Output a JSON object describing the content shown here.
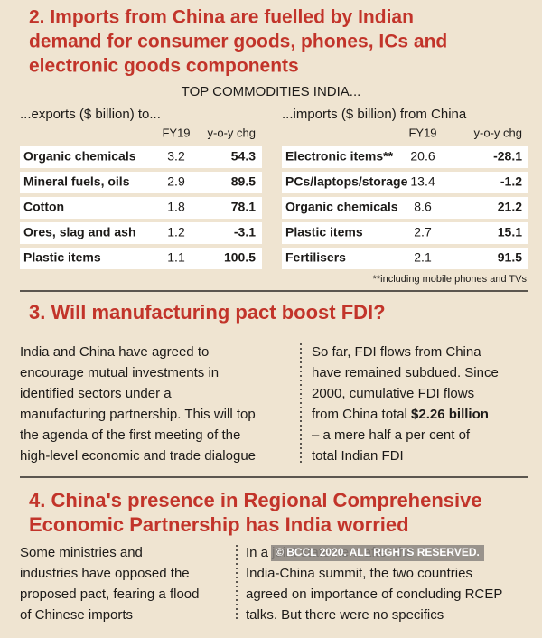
{
  "section2": {
    "heading_lines": [
      "2. Imports from China are fuelled by Indian",
      "demand for consumer goods, phones, ICs and",
      "electronic goods components"
    ],
    "subtitle": "TOP COMMODITIES INDIA...",
    "exports": {
      "caption": "...exports ($ billion) to...",
      "columns": [
        "FY19",
        "y-o-y chg"
      ],
      "rows": [
        [
          "Organic chemicals",
          3.2,
          54.3
        ],
        [
          "Mineral fuels, oils",
          2.9,
          89.5
        ],
        [
          "Cotton",
          1.8,
          78.1
        ],
        [
          "Ores, slag and ash",
          1.2,
          -3.1
        ],
        [
          "Plastic items",
          1.1,
          100.5
        ]
      ]
    },
    "imports": {
      "caption": "...imports ($ billion) from China",
      "columns": [
        "FY19",
        "y-o-y chg"
      ],
      "rows": [
        [
          "Electronic items**",
          20.6,
          -28.1
        ],
        [
          "PCs/laptops/storage",
          13.4,
          -1.2
        ],
        [
          "Organic chemicals",
          8.6,
          21.2
        ],
        [
          "Plastic items",
          2.7,
          15.1
        ],
        [
          "Fertilisers",
          2.1,
          91.5
        ]
      ]
    },
    "footnote": "**including mobile phones and TVs"
  },
  "section3": {
    "heading": "3. Will manufacturing pact boost FDI?",
    "left": [
      "India and China have agreed to",
      "encourage mutual investments in",
      "identified sectors under a",
      "manufacturing partnership. This will top",
      "the agenda of the first meeting of the",
      "high-level economic and trade dialogue"
    ],
    "right": [
      "So far, FDI flows from China",
      "have remained subdued. Since",
      "2000, cumulative FDI flows",
      {
        "text": "from China total ",
        "bold": "$2.26 billion"
      },
      "– a mere half a per cent of",
      "total Indian FDI"
    ]
  },
  "section4": {
    "heading_lines": [
      "4. China's presence in Regional Comprehensive",
      "Economic Partnership has India worried"
    ],
    "left": [
      "Some ministries and",
      "industries have opposed the",
      "proposed pact, fearing a flood",
      "of Chinese imports"
    ],
    "right": [
      "In a joint statement after the",
      "India-China summit, the two countries",
      "agreed on importance of concluding RCEP",
      "talks. But there were no specifics"
    ]
  },
  "watermark": "© BCCL 2020. ALL RIGHTS RESERVED."
}
